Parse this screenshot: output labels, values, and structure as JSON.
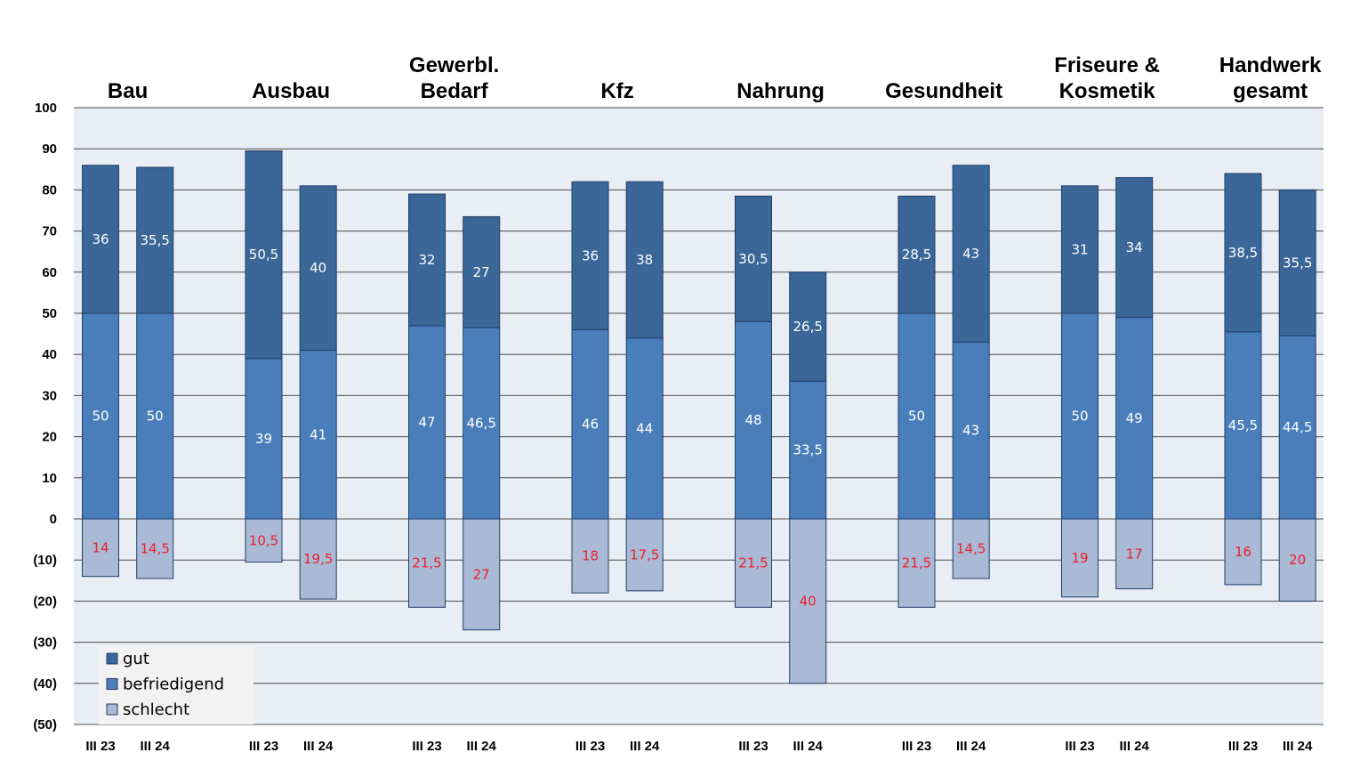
{
  "chart_data": {
    "type": "bar",
    "stacked": true,
    "ylim": [
      -50,
      100
    ],
    "y_ticks": [
      100,
      90,
      80,
      70,
      60,
      50,
      40,
      30,
      20,
      10,
      0,
      -10,
      -20,
      -30,
      -40,
      -50
    ],
    "y_tick_labels": [
      "100",
      "90",
      "80",
      "70",
      "60",
      "50",
      "40",
      "30",
      "20",
      "10",
      "0",
      "(10)",
      "(20)",
      "(30)",
      "(40)",
      "(50)"
    ],
    "grid": true,
    "legend_position": "bottom-left",
    "groups": [
      {
        "title": [
          "Bau"
        ],
        "bars": [
          {
            "label": "III 23",
            "gut": 36,
            "befriedigend": 50,
            "schlecht": 14,
            "gut_label": "36",
            "befriedigend_label": "50",
            "schlecht_label": "14"
          },
          {
            "label": "III 24",
            "gut": 35.5,
            "befriedigend": 50,
            "schlecht": 14.5,
            "gut_label": "35,5",
            "befriedigend_label": "50",
            "schlecht_label": "14,5"
          }
        ]
      },
      {
        "title": [
          "Ausbau"
        ],
        "bars": [
          {
            "label": "III 23",
            "gut": 50.5,
            "befriedigend": 39,
            "schlecht": 10.5,
            "gut_label": "50,5",
            "befriedigend_label": "39",
            "schlecht_label": "10,5"
          },
          {
            "label": "III 24",
            "gut": 40,
            "befriedigend": 41,
            "schlecht": 19.5,
            "gut_label": "40",
            "befriedigend_label": "41",
            "schlecht_label": "19,5"
          }
        ]
      },
      {
        "title": [
          "Gewerbl.",
          "Bedarf"
        ],
        "bars": [
          {
            "label": "III 23",
            "gut": 32,
            "befriedigend": 47,
            "schlecht": 21.5,
            "gut_label": "32",
            "befriedigend_label": "47",
            "schlecht_label": "21,5"
          },
          {
            "label": "III 24",
            "gut": 27,
            "befriedigend": 46.5,
            "schlecht": 27,
            "gut_label": "27",
            "befriedigend_label": "46,5",
            "schlecht_label": "27"
          }
        ]
      },
      {
        "title": [
          "Kfz"
        ],
        "bars": [
          {
            "label": "III 23",
            "gut": 36,
            "befriedigend": 46,
            "schlecht": 18,
            "gut_label": "36",
            "befriedigend_label": "46",
            "schlecht_label": "18"
          },
          {
            "label": "III 24",
            "gut": 38,
            "befriedigend": 44,
            "schlecht": 17.5,
            "gut_label": "38",
            "befriedigend_label": "44",
            "schlecht_label": "17,5"
          }
        ]
      },
      {
        "title": [
          "Nahrung"
        ],
        "bars": [
          {
            "label": "III 23",
            "gut": 30.5,
            "befriedigend": 48,
            "schlecht": 21.5,
            "gut_label": "30,5",
            "befriedigend_label": "48",
            "schlecht_label": "21,5"
          },
          {
            "label": "III 24",
            "gut": 26.5,
            "befriedigend": 33.5,
            "schlecht": 40,
            "gut_label": "26,5",
            "befriedigend_label": "33,5",
            "schlecht_label": "40"
          }
        ]
      },
      {
        "title": [
          "Gesundheit"
        ],
        "bars": [
          {
            "label": "III 23",
            "gut": 28.5,
            "befriedigend": 50,
            "schlecht": 21.5,
            "gut_label": "28,5",
            "befriedigend_label": "50",
            "schlecht_label": "21,5"
          },
          {
            "label": "III 24",
            "gut": 43,
            "befriedigend": 43,
            "schlecht": 14.5,
            "gut_label": "43",
            "befriedigend_label": "43",
            "schlecht_label": "14,5"
          }
        ]
      },
      {
        "title": [
          "Friseure &",
          "Kosmetik"
        ],
        "bars": [
          {
            "label": "III 23",
            "gut": 31,
            "befriedigend": 50,
            "schlecht": 19,
            "gut_label": "31",
            "befriedigend_label": "50",
            "schlecht_label": "19"
          },
          {
            "label": "III 24",
            "gut": 34,
            "befriedigend": 49,
            "schlecht": 17,
            "gut_label": "34",
            "befriedigend_label": "49",
            "schlecht_label": "17"
          }
        ]
      },
      {
        "title": [
          "Handwerk",
          "gesamt"
        ],
        "bars": [
          {
            "label": "III 23",
            "gut": 38.5,
            "befriedigend": 45.5,
            "schlecht": 16,
            "gut_label": "38,5",
            "befriedigend_label": "45,5",
            "schlecht_label": "16"
          },
          {
            "label": "III 24",
            "gut": 35.5,
            "befriedigend": 44.5,
            "schlecht": 20,
            "gut_label": "35,5",
            "befriedigend_label": "44,5",
            "schlecht_label": "20"
          }
        ]
      }
    ],
    "legend": [
      {
        "key": "gut",
        "label": "gut",
        "color": "#3b6698"
      },
      {
        "key": "befriedigend",
        "label": "befriedigend",
        "color": "#4a7ebb"
      },
      {
        "key": "schlecht",
        "label": "schlecht",
        "color": "#aab9d6"
      }
    ],
    "colors": {
      "plot_bg": "#e9edf4",
      "grid": "#4d4d4d",
      "bar_border": "#1f3f6b",
      "value_light": "#ffffff",
      "value_red": "#e8212a",
      "legend_bg": "#f2f2f2"
    }
  }
}
